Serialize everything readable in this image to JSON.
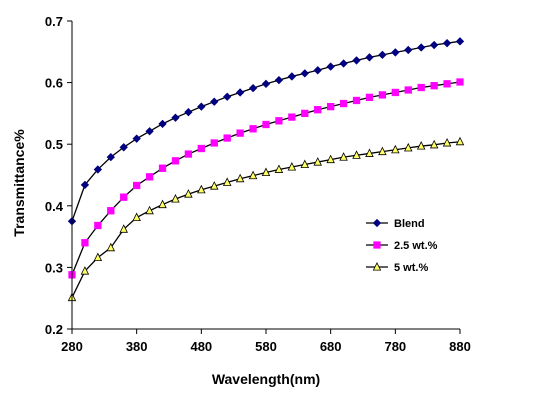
{
  "chart_data": {
    "type": "line",
    "title": "",
    "xlabel": "Wavelength(nm)",
    "ylabel": "Transmittance%",
    "xlim": [
      280,
      880
    ],
    "ylim": [
      0.2,
      0.7
    ],
    "x_ticks": [
      280,
      380,
      480,
      580,
      680,
      780,
      880
    ],
    "y_ticks": [
      0.2,
      0.3,
      0.4,
      0.5,
      0.6,
      0.7
    ],
    "y_tick_labels": [
      "0.2",
      "0.3",
      "0.4",
      "0.5",
      "0.6",
      "0.7"
    ],
    "grid": false,
    "legend_position": "right",
    "x": [
      280,
      300,
      320,
      340,
      360,
      380,
      400,
      420,
      440,
      460,
      480,
      500,
      520,
      540,
      560,
      580,
      600,
      620,
      640,
      660,
      680,
      700,
      720,
      740,
      760,
      780,
      800,
      820,
      840,
      860,
      880
    ],
    "series": [
      {
        "name": "Blend",
        "color": "#000080",
        "marker": "diamond",
        "values": [
          0.375,
          0.434,
          0.459,
          0.479,
          0.495,
          0.509,
          0.521,
          0.533,
          0.543,
          0.552,
          0.561,
          0.569,
          0.577,
          0.584,
          0.591,
          0.598,
          0.604,
          0.61,
          0.615,
          0.62,
          0.626,
          0.631,
          0.636,
          0.641,
          0.645,
          0.649,
          0.653,
          0.657,
          0.661,
          0.664,
          0.667
        ]
      },
      {
        "name": "2.5 wt.%",
        "color": "#FF00FF",
        "marker": "square",
        "values": [
          0.288,
          0.34,
          0.368,
          0.392,
          0.414,
          0.433,
          0.447,
          0.461,
          0.473,
          0.484,
          0.493,
          0.502,
          0.51,
          0.518,
          0.525,
          0.532,
          0.538,
          0.544,
          0.55,
          0.556,
          0.561,
          0.566,
          0.571,
          0.576,
          0.58,
          0.584,
          0.588,
          0.592,
          0.595,
          0.598,
          0.601
        ]
      },
      {
        "name": "5 wt.%",
        "color": "#FFFF66",
        "marker": "triangle",
        "values": [
          0.251,
          0.294,
          0.316,
          0.332,
          0.362,
          0.381,
          0.392,
          0.402,
          0.411,
          0.419,
          0.426,
          0.432,
          0.438,
          0.444,
          0.449,
          0.454,
          0.459,
          0.463,
          0.467,
          0.471,
          0.475,
          0.479,
          0.482,
          0.485,
          0.488,
          0.491,
          0.494,
          0.497,
          0.499,
          0.502,
          0.504
        ]
      }
    ]
  }
}
